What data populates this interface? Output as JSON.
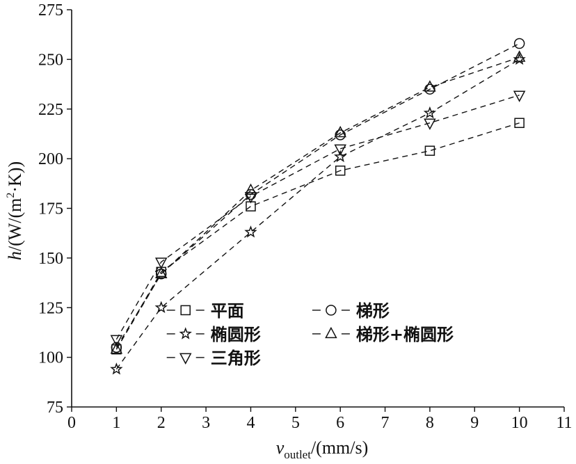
{
  "chart_data": {
    "type": "line",
    "title": "",
    "xlabel": {
      "main": "v",
      "sub": "outlet",
      "unit": "/(mm/s)"
    },
    "ylabel": {
      "main": "h",
      "unit_start": "/(W/(m",
      "sup": "2",
      "unit_end": "·K))"
    },
    "xlim": [
      0,
      11
    ],
    "ylim": [
      75,
      275
    ],
    "xticks": [
      0,
      1,
      2,
      3,
      4,
      5,
      6,
      7,
      8,
      9,
      10,
      11
    ],
    "yticks": [
      75,
      100,
      125,
      150,
      175,
      200,
      225,
      250,
      275
    ],
    "grid": false,
    "legend_position": "lower-right",
    "series": [
      {
        "name": "平面",
        "marker": "square",
        "legend_line": "- □ -",
        "x": [
          1,
          2,
          4,
          6,
          8,
          10
        ],
        "y": [
          104,
          143,
          176,
          194,
          204,
          218
        ]
      },
      {
        "name": "梯形",
        "marker": "circle",
        "legend_line": "- ○ -",
        "x": [
          1,
          2,
          4,
          6,
          8,
          10
        ],
        "y": [
          105,
          142,
          182,
          212,
          235,
          258
        ]
      },
      {
        "name": "椭圆形",
        "marker": "star",
        "legend_line": "- ☆ -",
        "x": [
          1,
          2,
          4,
          6,
          8,
          10
        ],
        "y": [
          94,
          125,
          163,
          201,
          223,
          250
        ]
      },
      {
        "name": "梯形+椭圆形",
        "marker": "triangle-up",
        "legend_line": "- △ -",
        "x": [
          1,
          2,
          4,
          6,
          8,
          10
        ],
        "y": [
          104,
          142,
          184,
          213,
          236,
          251
        ]
      },
      {
        "name": "三角形",
        "marker": "triangle-down",
        "legend_line": "- ▽ -",
        "x": [
          1,
          2,
          4,
          6,
          8,
          10
        ],
        "y": [
          109,
          148,
          181,
          205,
          218,
          232
        ]
      }
    ]
  }
}
